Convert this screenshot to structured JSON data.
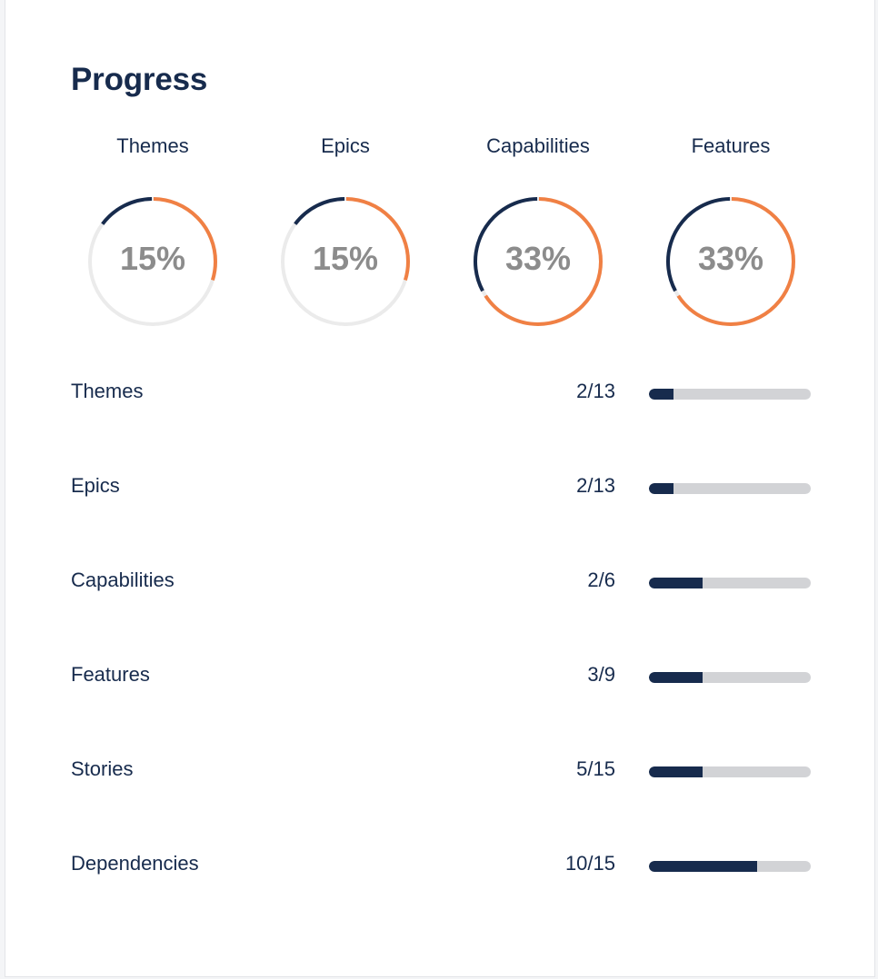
{
  "page": {
    "title": "Progress"
  },
  "colors": {
    "navy": "#172b4d",
    "orange": "#f08044",
    "track": "#ebebeb",
    "bar_track": "#d2d3d6",
    "percent_text": "#8c8c8c"
  },
  "donuts": [
    {
      "label": "Themes",
      "percent_text": "15%",
      "fraction": 0.15
    },
    {
      "label": "Epics",
      "percent_text": "15%",
      "fraction": 0.15
    },
    {
      "label": "Capabilities",
      "percent_text": "33%",
      "fraction": 0.33
    },
    {
      "label": "Features",
      "percent_text": "33%",
      "fraction": 0.33
    }
  ],
  "rows": [
    {
      "label": "Themes",
      "count": "2/13",
      "fraction": 0.1538
    },
    {
      "label": "Epics",
      "count": "2/13",
      "fraction": 0.1538
    },
    {
      "label": "Capabilities",
      "count": "2/6",
      "fraction": 0.3333
    },
    {
      "label": "Features",
      "count": "3/9",
      "fraction": 0.3333
    },
    {
      "label": "Stories",
      "count": "5/15",
      "fraction": 0.3333
    },
    {
      "label": "Dependencies",
      "count": "10/15",
      "fraction": 0.6667
    }
  ]
}
